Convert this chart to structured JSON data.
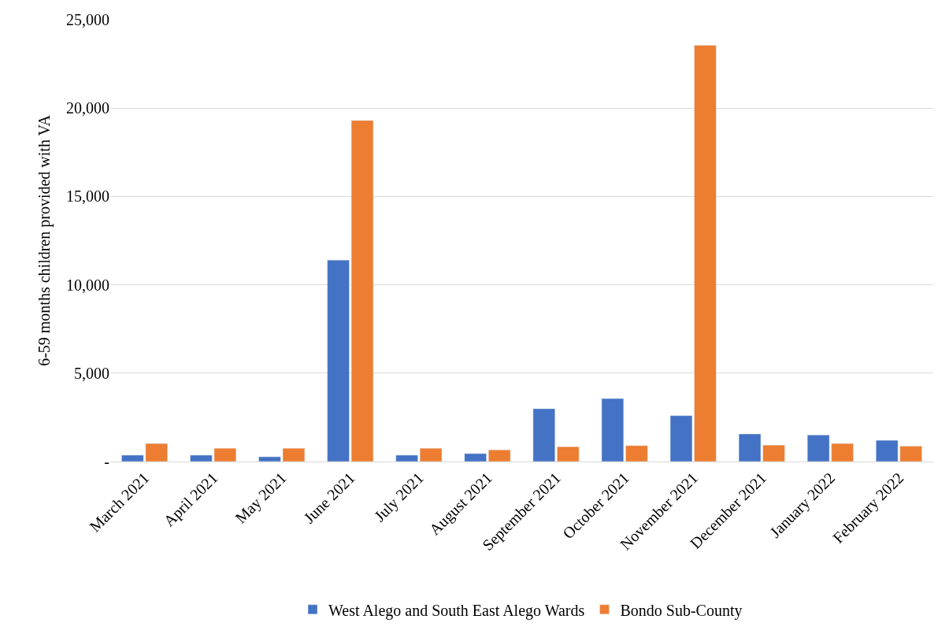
{
  "chart_data": {
    "type": "bar",
    "ylabel": "6-59 months children provided with VA",
    "categories": [
      "March 2021",
      "April 2021",
      "May 2021",
      "June 2021",
      "July 2021",
      "August 2021",
      "September 2021",
      "October 2021",
      "November 2021",
      "December 2021",
      "January 2022",
      "February 2022"
    ],
    "series": [
      {
        "name": "West Alego and South East Alego Wards",
        "color": "#4472c4",
        "values": [
          360,
          360,
          270,
          11400,
          360,
          450,
          2990,
          3560,
          2600,
          1560,
          1500,
          1200
        ]
      },
      {
        "name": "Bondo Sub-County",
        "color": "#ed7d31",
        "values": [
          1020,
          750,
          750,
          19300,
          750,
          660,
          840,
          900,
          23550,
          930,
          1020,
          870
        ]
      }
    ],
    "ylim": [
      0,
      25000
    ],
    "yticks": [
      {
        "value": 0,
        "label": "-"
      },
      "5,000",
      {
        "value": 10000,
        "label": "10,000"
      },
      {
        "value": 15000,
        "label": "15,000"
      },
      {
        "value": 20000,
        "label": "20,000"
      },
      {
        "value": 25000,
        "label": "25,000"
      }
    ],
    "grid": "y",
    "legend": "bottom"
  }
}
